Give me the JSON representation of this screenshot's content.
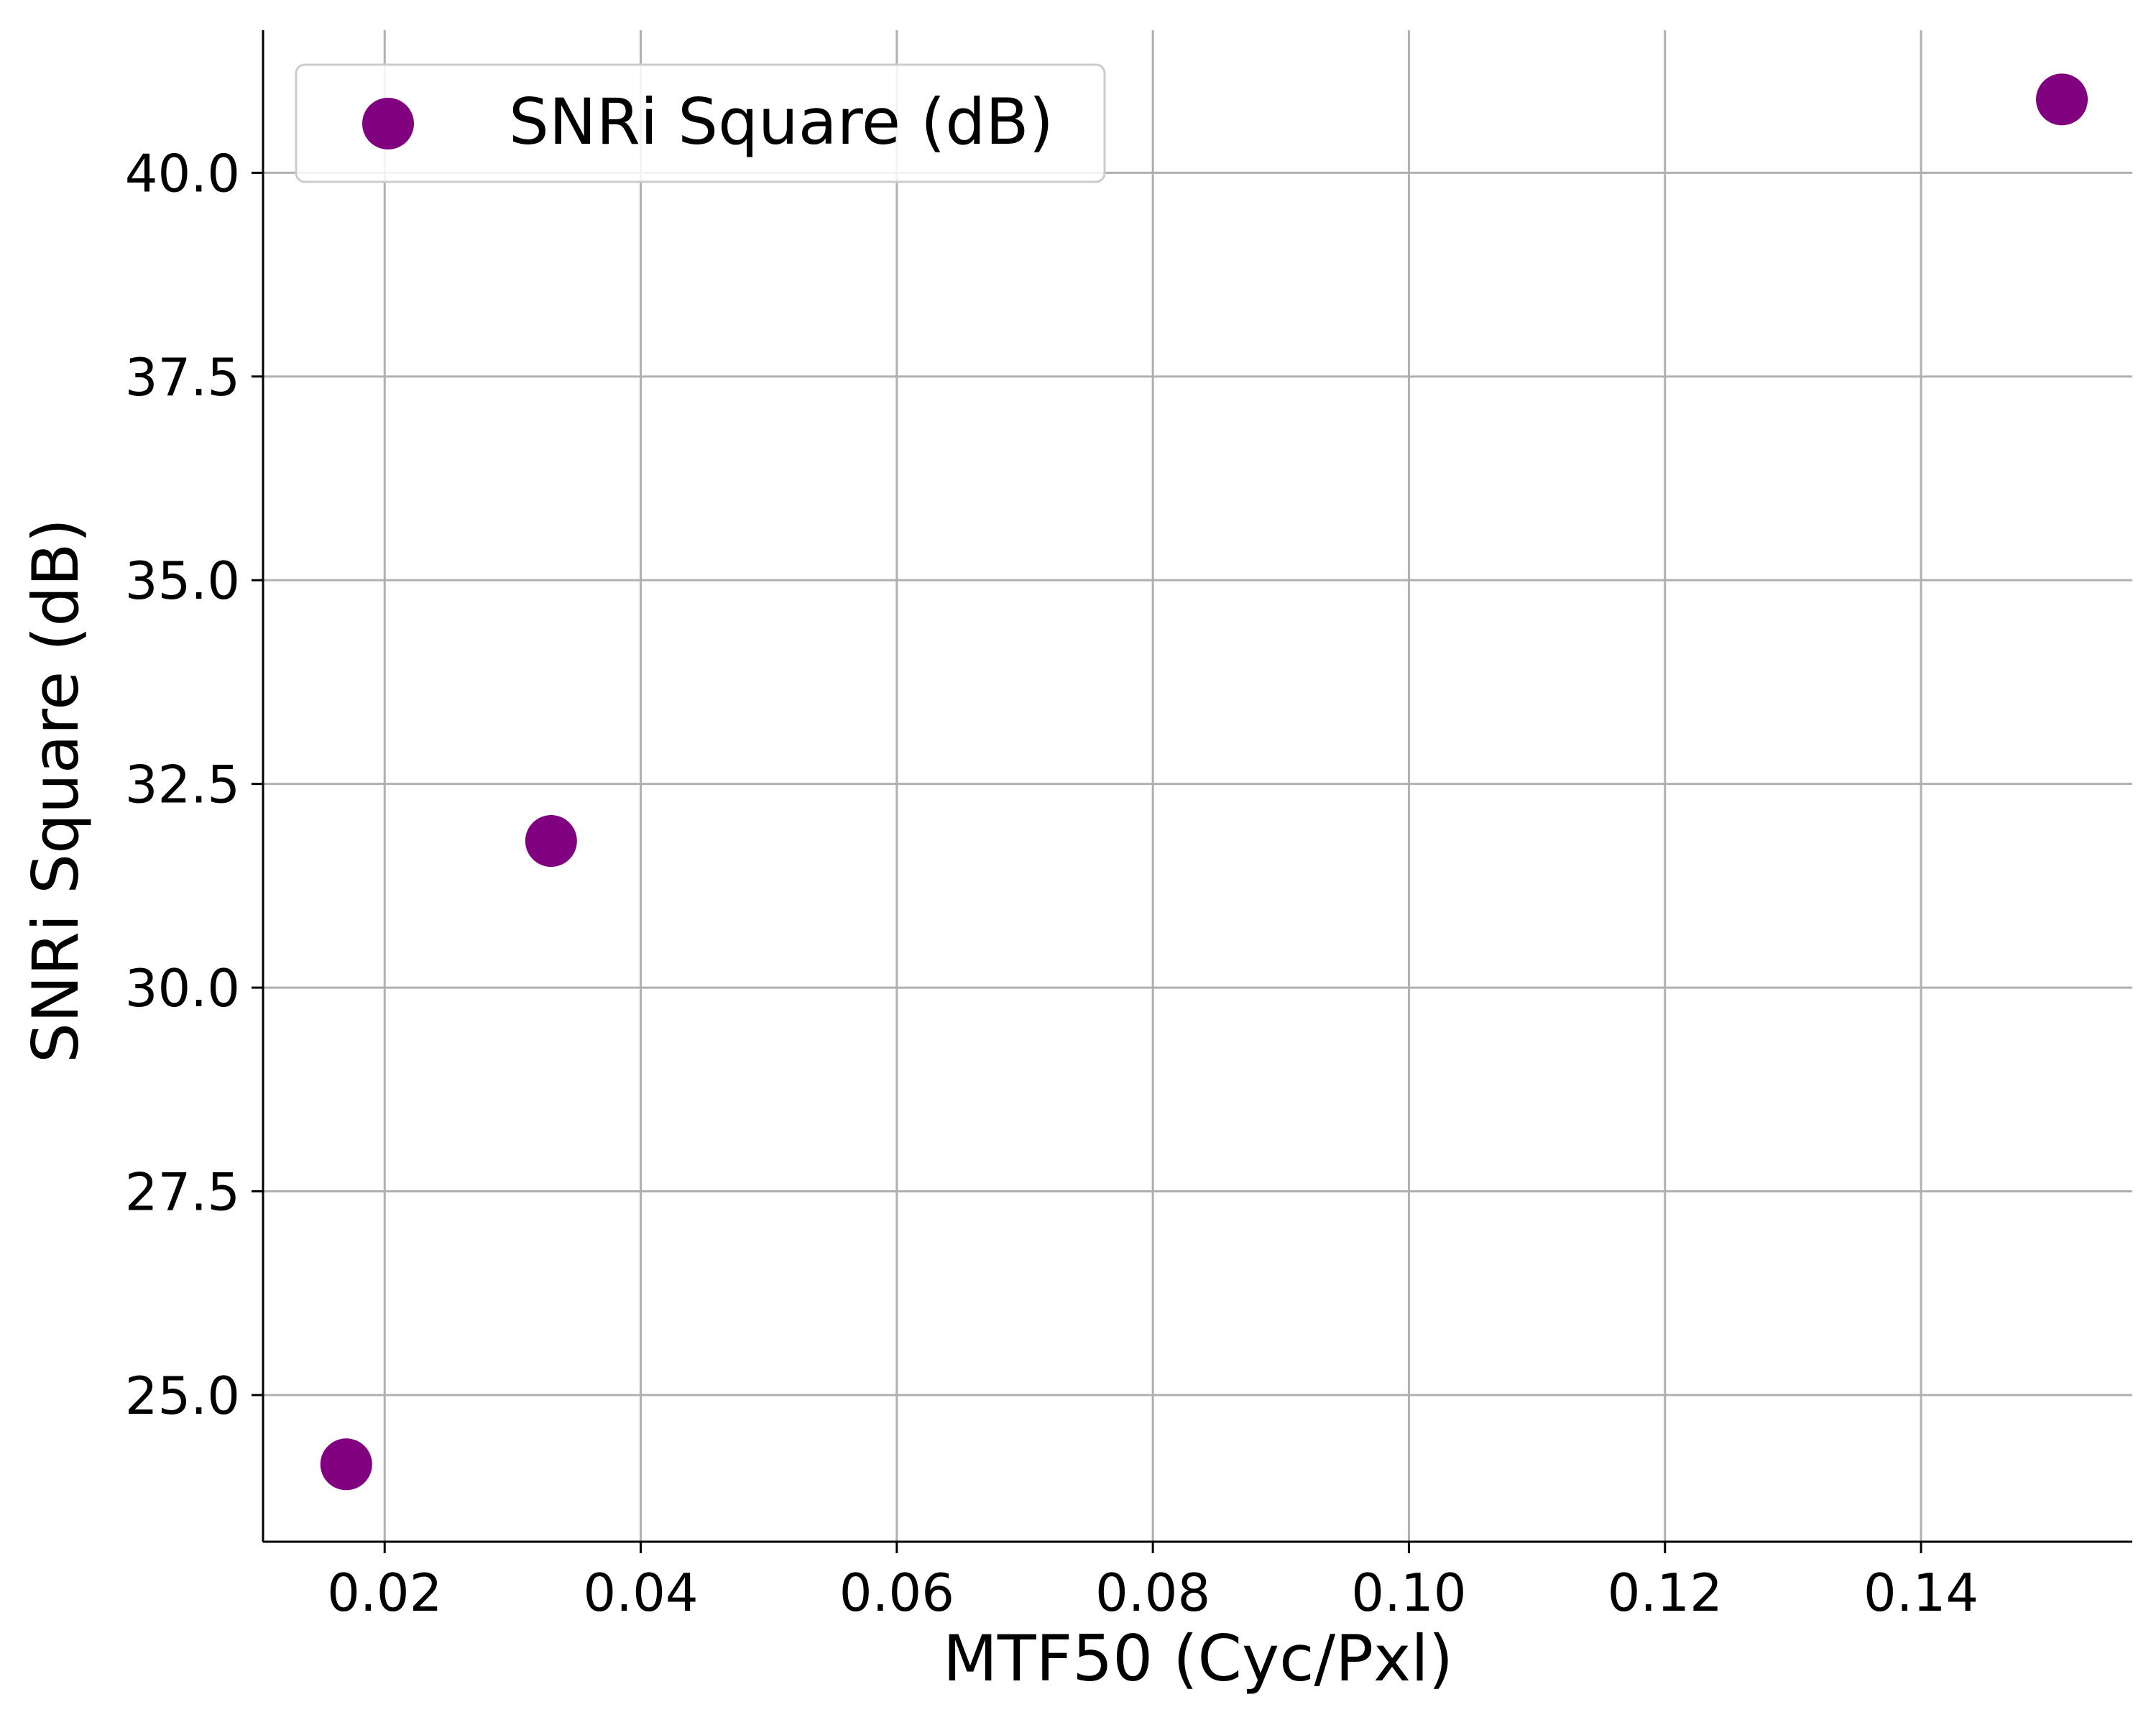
{
  "chart_data": {
    "type": "scatter",
    "title": "",
    "xlabel": "MTF50 (Cyc/Pxl)",
    "ylabel": "SNRi Square (dB)",
    "xlim": [
      0.0105,
      0.1565
    ],
    "ylim": [
      23.2,
      41.75
    ],
    "xticks": [
      0.02,
      0.04,
      0.06,
      0.08,
      0.1,
      0.12,
      0.14
    ],
    "xtick_labels": [
      "0.02",
      "0.04",
      "0.06",
      "0.08",
      "0.10",
      "0.12",
      "0.14"
    ],
    "yticks": [
      25.0,
      27.5,
      30.0,
      32.5,
      35.0,
      37.5,
      40.0
    ],
    "ytick_labels": [
      "25.0",
      "27.5",
      "30.0",
      "32.5",
      "35.0",
      "37.5",
      "40.0"
    ],
    "grid": true,
    "legend_position": "top-left",
    "series": [
      {
        "name": "SNRi Square (dB)",
        "color": "#800080",
        "points": [
          {
            "x": 0.017,
            "y": 24.15
          },
          {
            "x": 0.033,
            "y": 31.8
          },
          {
            "x": 0.151,
            "y": 40.9
          }
        ]
      }
    ]
  }
}
